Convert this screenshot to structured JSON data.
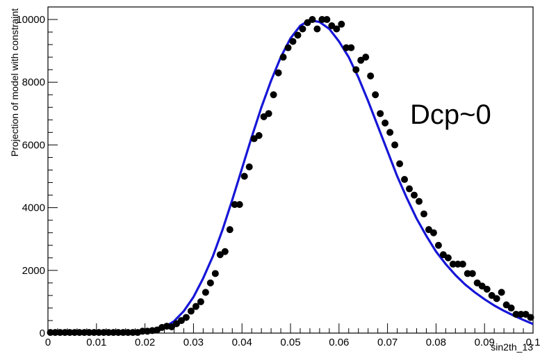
{
  "chart_data": {
    "type": "scatter",
    "xlabel": "sin2th_13",
    "ylabel": "Projection of model with constraint",
    "xlim": [
      0,
      0.1
    ],
    "ylim": [
      0,
      10400
    ],
    "x_ticks": [
      0,
      0.01,
      0.02,
      0.03,
      0.04,
      0.05,
      0.06,
      0.07,
      0.08,
      0.09,
      0.1
    ],
    "x_tick_labels": [
      "0",
      "0.01",
      "0.02",
      "0.03",
      "0.04",
      "0.05",
      "0.06",
      "0.07",
      "0.08",
      "0.09",
      "0.1"
    ],
    "y_ticks": [
      0,
      2000,
      4000,
      6000,
      8000,
      10000
    ],
    "y_tick_labels": [
      "0",
      "2000",
      "4000",
      "6000",
      "8000",
      "10000"
    ],
    "annotation": "Dcp~0",
    "grid": false,
    "series": [
      {
        "kind": "points",
        "color": "#000000",
        "x": [
          0.0005,
          0.0015,
          0.0025,
          0.0035,
          0.0045,
          0.0055,
          0.0065,
          0.0075,
          0.0085,
          0.0095,
          0.0105,
          0.0115,
          0.0125,
          0.0135,
          0.0145,
          0.0155,
          0.0165,
          0.0175,
          0.0185,
          0.0195,
          0.0205,
          0.0215,
          0.0225,
          0.0235,
          0.0245,
          0.0255,
          0.0265,
          0.0275,
          0.0285,
          0.0295,
          0.0305,
          0.0315,
          0.0325,
          0.0335,
          0.0345,
          0.0355,
          0.0365,
          0.0375,
          0.0385,
          0.0395,
          0.0405,
          0.0415,
          0.0425,
          0.0435,
          0.0445,
          0.0455,
          0.0465,
          0.0475,
          0.0485,
          0.0495,
          0.0505,
          0.0515,
          0.0525,
          0.0535,
          0.0545,
          0.0555,
          0.0565,
          0.0575,
          0.0585,
          0.0595,
          0.0605,
          0.0615,
          0.0625,
          0.0635,
          0.0645,
          0.0655,
          0.0665,
          0.0675,
          0.0685,
          0.0695,
          0.0705,
          0.0715,
          0.0725,
          0.0735,
          0.0745,
          0.0755,
          0.0765,
          0.0775,
          0.0785,
          0.0795,
          0.0805,
          0.0815,
          0.0825,
          0.0835,
          0.0845,
          0.0855,
          0.0865,
          0.0875,
          0.0885,
          0.0895,
          0.0905,
          0.0915,
          0.0925,
          0.0935,
          0.0945,
          0.0955,
          0.0965,
          0.0975,
          0.0985,
          0.0995
        ],
        "y": [
          20,
          20,
          20,
          20,
          20,
          20,
          20,
          20,
          20,
          20,
          20,
          20,
          20,
          20,
          20,
          20,
          20,
          20,
          20,
          60,
          60,
          80,
          100,
          180,
          220,
          200,
          300,
          400,
          500,
          700,
          850,
          1000,
          1300,
          1600,
          1900,
          2500,
          2600,
          3300,
          4100,
          4100,
          5000,
          5300,
          6200,
          6300,
          6900,
          7000,
          7600,
          8300,
          8800,
          9100,
          9300,
          9500,
          9700,
          9900,
          10000,
          9700,
          10000,
          10000,
          9800,
          9700,
          9850,
          9100,
          9100,
          8400,
          8700,
          8800,
          8200,
          7600,
          7000,
          6700,
          6400,
          6000,
          5400,
          4900,
          4600,
          4400,
          4200,
          3800,
          3300,
          3200,
          2800,
          2500,
          2400,
          2200,
          2200,
          2200,
          1900,
          1900,
          1600,
          1500,
          1400,
          1200,
          1100,
          1300,
          900,
          800,
          600,
          600,
          600,
          500
        ]
      },
      {
        "kind": "curve",
        "color": "#1616d8",
        "x": [
          0.02,
          0.022,
          0.024,
          0.026,
          0.028,
          0.03,
          0.032,
          0.034,
          0.036,
          0.038,
          0.04,
          0.042,
          0.044,
          0.046,
          0.048,
          0.05,
          0.052,
          0.054,
          0.056,
          0.058,
          0.06,
          0.062,
          0.064,
          0.066,
          0.068,
          0.07,
          0.072,
          0.074,
          0.076,
          0.078,
          0.08,
          0.082,
          0.084,
          0.086,
          0.088,
          0.09,
          0.092,
          0.094,
          0.096,
          0.098,
          0.1
        ],
        "y": [
          20,
          80,
          180,
          380,
          700,
          1150,
          1750,
          2450,
          3300,
          4250,
          5250,
          6250,
          7200,
          8050,
          8800,
          9400,
          9800,
          9980,
          9920,
          9700,
          9300,
          8800,
          8150,
          7400,
          6600,
          5800,
          5000,
          4300,
          3650,
          3100,
          2600,
          2200,
          1850,
          1550,
          1300,
          1080,
          880,
          710,
          560,
          420,
          290
        ]
      }
    ]
  }
}
